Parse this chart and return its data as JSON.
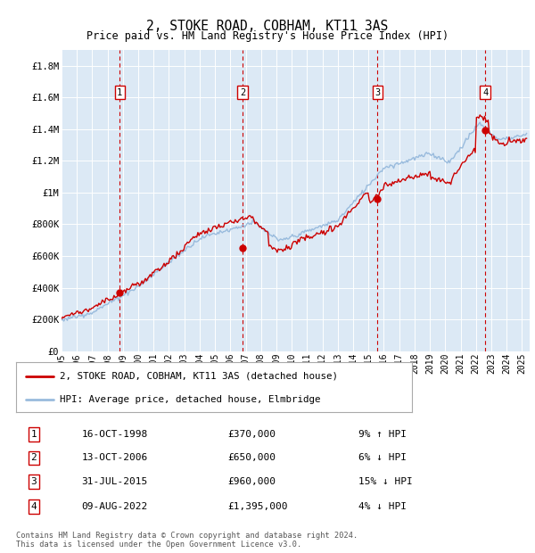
{
  "title": "2, STOKE ROAD, COBHAM, KT11 3AS",
  "subtitle": "Price paid vs. HM Land Registry's House Price Index (HPI)",
  "ylabel_ticks": [
    "£0",
    "£200K",
    "£400K",
    "£600K",
    "£800K",
    "£1M",
    "£1.2M",
    "£1.4M",
    "£1.6M",
    "£1.8M"
  ],
  "ytick_values": [
    0,
    200000,
    400000,
    600000,
    800000,
    1000000,
    1200000,
    1400000,
    1600000,
    1800000
  ],
  "ylim": [
    0,
    1900000
  ],
  "xlim_start": 1995.0,
  "xlim_end": 2025.5,
  "fig_bg_color": "#ffffff",
  "background_color": "#dce9f5",
  "grid_color": "#ffffff",
  "sale_line_color": "#cc0000",
  "hpi_line_color": "#99bbdd",
  "transaction_markers": [
    {
      "num": 1,
      "year": 1998.79,
      "price": 370000,
      "label": "1"
    },
    {
      "num": 2,
      "year": 2006.79,
      "price": 650000,
      "label": "2"
    },
    {
      "num": 3,
      "year": 2015.58,
      "price": 960000,
      "label": "3"
    },
    {
      "num": 4,
      "year": 2022.6,
      "price": 1395000,
      "label": "4"
    }
  ],
  "vline_color": "#cc0000",
  "legend_entries": [
    "2, STOKE ROAD, COBHAM, KT11 3AS (detached house)",
    "HPI: Average price, detached house, Elmbridge"
  ],
  "table_rows": [
    {
      "num": "1",
      "date": "16-OCT-1998",
      "price": "£370,000",
      "hpi": "9% ↑ HPI"
    },
    {
      "num": "2",
      "date": "13-OCT-2006",
      "price": "£650,000",
      "hpi": "6% ↓ HPI"
    },
    {
      "num": "3",
      "date": "31-JUL-2015",
      "price": "£960,000",
      "hpi": "15% ↓ HPI"
    },
    {
      "num": "4",
      "date": "09-AUG-2022",
      "price": "£1,395,000",
      "hpi": "4% ↓ HPI"
    }
  ],
  "footer": "Contains HM Land Registry data © Crown copyright and database right 2024.\nThis data is licensed under the Open Government Licence v3.0.",
  "xtick_years": [
    1995,
    1996,
    1997,
    1998,
    1999,
    2000,
    2001,
    2002,
    2003,
    2004,
    2005,
    2006,
    2007,
    2008,
    2009,
    2010,
    2011,
    2012,
    2013,
    2014,
    2015,
    2016,
    2017,
    2018,
    2019,
    2020,
    2021,
    2022,
    2023,
    2024,
    2025
  ]
}
